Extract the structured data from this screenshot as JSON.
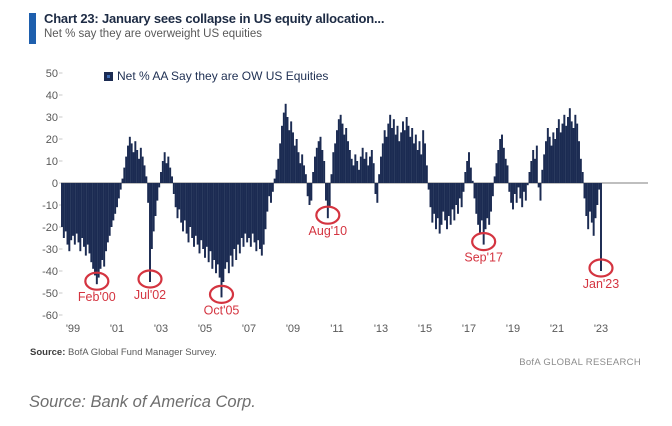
{
  "header": {
    "title": "Chart 23: January sees collapse in US equity allocation...",
    "subtitle": "Net % say they are overweight US equities"
  },
  "legend": {
    "label": "Net % AA Say they are OW US Equities"
  },
  "footer": {
    "source_label": "Source:",
    "source_text": " BofA Global Fund Manager Survey.",
    "brand": "BofA GLOBAL RESEARCH"
  },
  "caption": "Source: Bank of America Corp.",
  "colors": {
    "accent": "#1e5fad",
    "bar": "#1b2b52",
    "legend_dot": "#3e6cb5",
    "annotation_red": "#d43440",
    "axis_text": "#595959",
    "axis_line": "#7f7f7f",
    "tick": "#c9c9c9"
  },
  "chart_data": {
    "type": "bar",
    "title": "Chart 23: January sees collapse in US equity allocation...",
    "subtitle": "Net % say they are overweight US equities",
    "xlabel": "",
    "ylabel": "Net % AA Say they are OW US Equities",
    "ylim": [
      -60,
      50
    ],
    "yticks": [
      50,
      40,
      30,
      20,
      10,
      0,
      -10,
      -20,
      -30,
      -40,
      -50,
      -60
    ],
    "xticks": [
      "'99",
      "'01",
      "'03",
      "'05",
      "'07",
      "'09",
      "'11",
      "'13",
      "'15",
      "'17",
      "'19",
      "'21",
      "'23"
    ],
    "x_start": "1998-07",
    "frequency": "monthly",
    "grid": false,
    "legend_position": "top",
    "series": [
      {
        "name": "Net % AA Say they are OW US Equities",
        "values": [
          -20,
          -25,
          -22,
          -28,
          -31,
          -26,
          -24,
          -28,
          -23,
          -27,
          -31,
          -25,
          -29,
          -33,
          -28,
          -32,
          -36,
          -39,
          -42,
          -46,
          -43,
          -39,
          -35,
          -38,
          -31,
          -27,
          -24,
          -20,
          -17,
          -14,
          -11,
          -7,
          -3,
          2,
          7,
          12,
          17,
          21,
          18,
          14,
          19,
          15,
          11,
          16,
          12,
          8,
          3,
          -9,
          -45,
          -30,
          -22,
          -15,
          -8,
          -2,
          5,
          10,
          14,
          9,
          12,
          7,
          3,
          -5,
          -11,
          -16,
          -12,
          -18,
          -22,
          -17,
          -23,
          -27,
          -20,
          -25,
          -29,
          -24,
          -28,
          -32,
          -26,
          -30,
          -34,
          -29,
          -36,
          -31,
          -39,
          -35,
          -41,
          -37,
          -43,
          -52,
          -45,
          -39,
          -36,
          -41,
          -33,
          -38,
          -30,
          -35,
          -28,
          -32,
          -25,
          -29,
          -23,
          -27,
          -25,
          -29,
          -23,
          -27,
          -31,
          -26,
          -30,
          -33,
          -28,
          -21,
          -13,
          -6,
          -9,
          -4,
          2,
          6,
          11,
          18,
          26,
          32,
          36,
          30,
          24,
          28,
          23,
          17,
          20,
          14,
          9,
          13,
          8,
          4,
          -6,
          -10,
          -8,
          5,
          12,
          16,
          19,
          21,
          15,
          10,
          -8,
          -16,
          -11,
          4,
          14,
          18,
          24,
          29,
          31,
          27,
          22,
          25,
          19,
          15,
          11,
          8,
          13,
          10,
          6,
          12,
          16,
          11,
          14,
          8,
          12,
          15,
          9,
          -5,
          -9,
          4,
          12,
          18,
          24,
          21,
          27,
          31,
          25,
          29,
          22,
          26,
          19,
          23,
          28,
          24,
          30,
          26,
          21,
          25,
          18,
          22,
          15,
          19,
          13,
          24,
          18,
          8,
          -3,
          -11,
          -18,
          -14,
          -21,
          -16,
          -23,
          -19,
          -13,
          -17,
          -21,
          -15,
          -19,
          -12,
          -17,
          -10,
          -14,
          -7,
          -11,
          -4,
          5,
          10,
          14,
          7,
          1,
          -7,
          -14,
          -19,
          -23,
          -17,
          -28,
          -21,
          -16,
          -19,
          -13,
          -6,
          3,
          9,
          15,
          20,
          22,
          16,
          11,
          8,
          -4,
          -9,
          -12,
          -5,
          -9,
          -2,
          -7,
          -11,
          -4,
          -8,
          -1,
          5,
          10,
          15,
          11,
          17,
          -2,
          -8,
          6,
          13,
          19,
          25,
          21,
          17,
          23,
          20,
          25,
          29,
          23,
          27,
          31,
          26,
          30,
          34,
          28,
          25,
          31,
          27,
          19,
          11,
          5,
          -7,
          -15,
          -21,
          -13,
          -18,
          -24,
          -16,
          -10,
          -3,
          -40
        ]
      }
    ],
    "annotations": [
      {
        "label": "Feb'00",
        "index": 19,
        "value": -46
      },
      {
        "label": "Jul'02",
        "index": 48,
        "value": -45
      },
      {
        "label": "Oct'05",
        "index": 87,
        "value": -52
      },
      {
        "label": "Aug'10",
        "index": 145,
        "value": -16
      },
      {
        "label": "Sep'17",
        "index": 230,
        "value": -28
      },
      {
        "label": "Jan'23",
        "index": 294,
        "value": -40
      }
    ]
  }
}
